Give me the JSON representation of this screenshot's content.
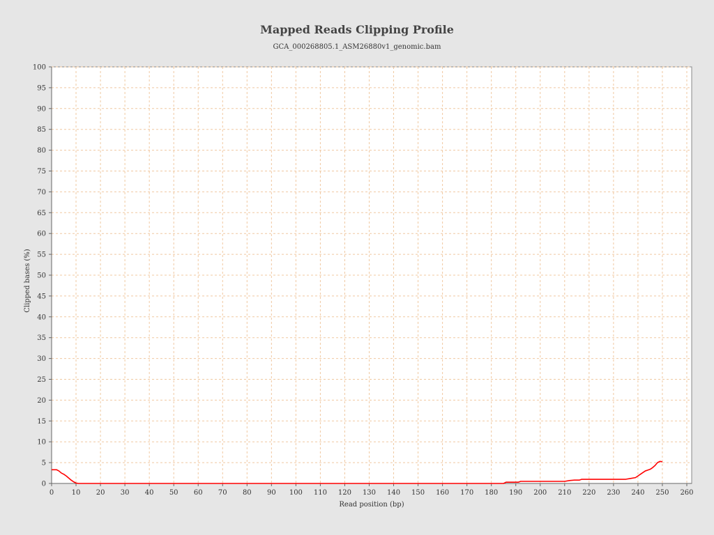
{
  "chart_data": {
    "type": "line",
    "title": "Mapped Reads Clipping Profile",
    "subtitle": "GCA_000268805.1_ASM26880v1_genomic.bam",
    "xlabel": "Read position (bp)",
    "ylabel": "Clipped bases (%)",
    "xlim": [
      0,
      262
    ],
    "ylim": [
      0,
      100
    ],
    "x_ticks": [
      0,
      10,
      20,
      30,
      40,
      50,
      60,
      70,
      80,
      90,
      100,
      110,
      120,
      130,
      140,
      150,
      160,
      170,
      180,
      190,
      200,
      210,
      220,
      230,
      240,
      250,
      260
    ],
    "y_ticks": [
      0,
      5,
      10,
      15,
      20,
      25,
      30,
      35,
      40,
      45,
      50,
      55,
      60,
      65,
      70,
      75,
      80,
      85,
      90,
      95,
      100
    ],
    "grid": true,
    "series": [
      {
        "color": "#ff0000",
        "points": [
          [
            0,
            3.3
          ],
          [
            2,
            3.3
          ],
          [
            3,
            3.0
          ],
          [
            4,
            2.5
          ],
          [
            5,
            2.2
          ],
          [
            6,
            1.8
          ],
          [
            7,
            1.3
          ],
          [
            8,
            0.8
          ],
          [
            9,
            0.4
          ],
          [
            10,
            0.1
          ],
          [
            11,
            0.0
          ],
          [
            185,
            0.0
          ],
          [
            186,
            0.3
          ],
          [
            191,
            0.3
          ],
          [
            192,
            0.5
          ],
          [
            210,
            0.5
          ],
          [
            212,
            0.7
          ],
          [
            214,
            0.8
          ],
          [
            216,
            0.8
          ],
          [
            217,
            1.0
          ],
          [
            235,
            1.0
          ],
          [
            237,
            1.2
          ],
          [
            239,
            1.4
          ],
          [
            240,
            1.8
          ],
          [
            241,
            2.2
          ],
          [
            242,
            2.6
          ],
          [
            243,
            3.0
          ],
          [
            244,
            3.2
          ],
          [
            245,
            3.4
          ],
          [
            246,
            3.8
          ],
          [
            247,
            4.3
          ],
          [
            248,
            5.0
          ],
          [
            249,
            5.3
          ],
          [
            250,
            5.2
          ]
        ]
      }
    ]
  }
}
